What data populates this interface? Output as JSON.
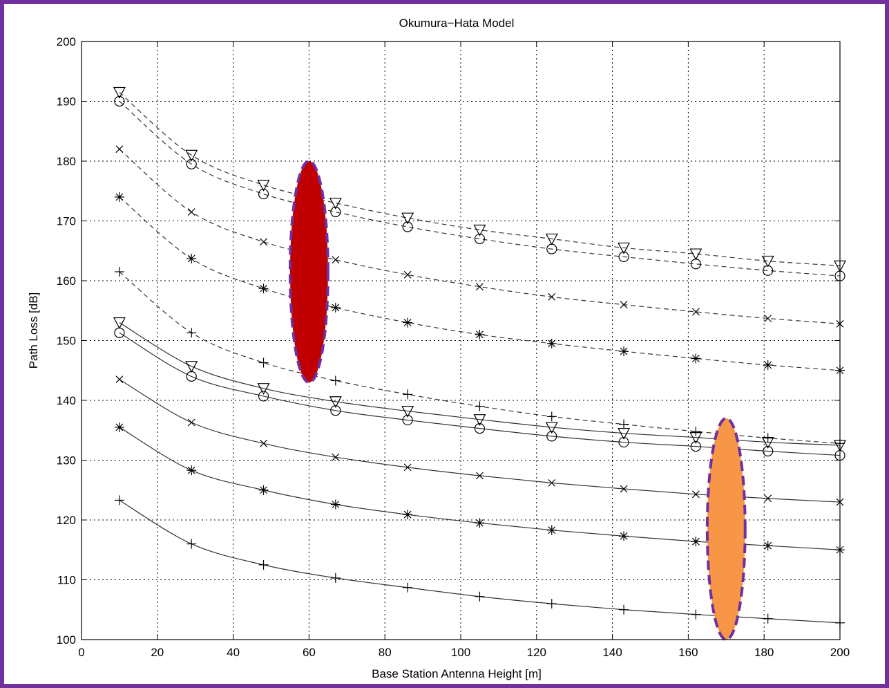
{
  "chart_data": {
    "type": "line",
    "title": "Okumura−Hata Model",
    "xlabel": "Base Station Antenna Height [m]",
    "ylabel": "Path Loss [dB]",
    "xlim": [
      0,
      200
    ],
    "ylim": [
      100,
      200
    ],
    "xticks": [
      0,
      20,
      40,
      60,
      80,
      100,
      120,
      140,
      160,
      180,
      200
    ],
    "yticks": [
      100,
      110,
      120,
      130,
      140,
      150,
      160,
      170,
      180,
      190,
      200
    ],
    "grid": true,
    "x": [
      10,
      29,
      48,
      67,
      86,
      105,
      124,
      143,
      162,
      181,
      200
    ],
    "series": [
      {
        "marker": "triangle",
        "line": "dashed",
        "values": [
          191.5,
          181,
          176,
          173,
          170.5,
          168.5,
          167,
          165.5,
          164.5,
          163.3,
          162.5
        ]
      },
      {
        "marker": "circle",
        "line": "dashed",
        "values": [
          190,
          179.5,
          174.5,
          171.5,
          169,
          167,
          165.3,
          164,
          162.8,
          161.7,
          160.8
        ]
      },
      {
        "marker": "x",
        "line": "dashed",
        "values": [
          182,
          171.5,
          166.5,
          163.5,
          161,
          159,
          157.3,
          156,
          154.8,
          153.7,
          152.8
        ]
      },
      {
        "marker": "star",
        "line": "dashed",
        "values": [
          174,
          163.7,
          158.7,
          155.5,
          153,
          151,
          149.5,
          148.2,
          147,
          145.9,
          145
        ]
      },
      {
        "marker": "plus",
        "line": "dashed",
        "values": [
          161.5,
          151.3,
          146.3,
          143.3,
          141,
          139,
          137.3,
          136,
          134.8,
          133.7,
          132.8
        ]
      },
      {
        "marker": "triangle",
        "line": "solid",
        "values": [
          153,
          145.7,
          142,
          139.8,
          138.2,
          136.8,
          135.5,
          134.5,
          133.8,
          133,
          132.5
        ]
      },
      {
        "marker": "circle",
        "line": "solid",
        "values": [
          151.3,
          144,
          140.7,
          138.3,
          136.7,
          135.3,
          134,
          133,
          132.3,
          131.5,
          130.8
        ]
      },
      {
        "marker": "x",
        "line": "solid",
        "values": [
          143.5,
          136.3,
          132.8,
          130.5,
          128.8,
          127.4,
          126.2,
          125.2,
          124.3,
          123.6,
          123
        ]
      },
      {
        "marker": "star",
        "line": "solid",
        "values": [
          135.5,
          128.3,
          125,
          122.6,
          120.9,
          119.5,
          118.3,
          117.3,
          116.4,
          115.7,
          115
        ]
      },
      {
        "marker": "plus",
        "line": "solid",
        "values": [
          123.3,
          116,
          112.5,
          110.3,
          108.7,
          107.2,
          106,
          105,
          104.2,
          103.5,
          102.8
        ]
      }
    ],
    "annotations": [
      {
        "shape": "ellipse",
        "fill": "#c00000",
        "border": "#7030a0",
        "center_x": 60,
        "center_y": 161.5,
        "rx_data": 5,
        "ry_data": 18.5
      },
      {
        "shape": "ellipse",
        "fill": "#f79646",
        "border": "#7030a0",
        "center_x": 170,
        "center_y": 118.5,
        "rx_data": 5,
        "ry_data": 18.5
      }
    ]
  },
  "colors": {
    "frame_border": "#7030a0",
    "series_color": "#000000"
  }
}
